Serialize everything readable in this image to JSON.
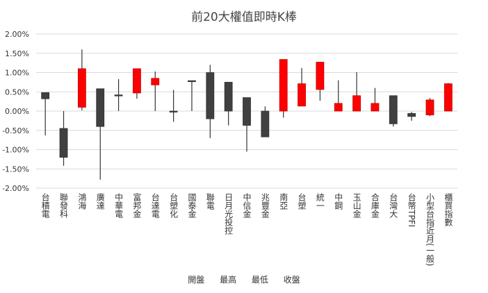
{
  "chart_data": {
    "type": "candlestick",
    "title": "前20大權值即時K棒",
    "ylim": [
      -2.0,
      2.0
    ],
    "yticks": [
      "2.00%",
      "1.50%",
      "1.00%",
      "0.50%",
      "0.00%",
      "-0.50%",
      "-1.00%",
      "-1.50%",
      "-2.00%"
    ],
    "grid": true,
    "legend_position": "bottom",
    "legend": [
      "開盤",
      "最高",
      "最低",
      "收盤"
    ],
    "colors": {
      "up": "#ff0000",
      "down": "#404040",
      "grid": "#d9d9d9",
      "wick": "#333333"
    },
    "categories": [
      "台積電",
      "聯發科",
      "鴻海",
      "廣達",
      "中華電",
      "富邦金",
      "台達電",
      "台塑化",
      "國泰金",
      "聯電",
      "日月光投控",
      "中信金",
      "兆豐金",
      "南亞",
      "台塑",
      "統一",
      "中鋼",
      "玉山金",
      "合庫金",
      "台灣大",
      "台幣TPFI",
      "小型台指近月(一般)",
      "櫃買指數"
    ],
    "open": [
      0.48,
      -0.45,
      0.1,
      0.58,
      0.42,
      0.47,
      0.68,
      0.0,
      0.79,
      1.0,
      0.75,
      0.35,
      0.0,
      0.0,
      0.13,
      0.56,
      0.0,
      0.0,
      0.0,
      0.4,
      -0.06,
      -0.1,
      0.0
    ],
    "high": [
      0.48,
      0.0,
      1.6,
      0.58,
      0.83,
      1.1,
      1.03,
      0.55,
      0.79,
      1.2,
      0.75,
      0.35,
      0.12,
      1.34,
      1.12,
      1.27,
      0.8,
      1.01,
      0.6,
      0.4,
      -0.02,
      0.34,
      0.73
    ],
    "low": [
      -0.63,
      -1.42,
      0.02,
      -1.78,
      0.0,
      0.32,
      0.0,
      -0.28,
      0.0,
      -0.7,
      -0.37,
      -1.05,
      -0.67,
      -0.17,
      0.13,
      0.27,
      0.0,
      0.0,
      0.0,
      -0.4,
      -0.25,
      -0.13,
      0.0
    ],
    "close": [
      0.32,
      -1.2,
      1.1,
      -0.4,
      0.4,
      1.1,
      0.85,
      -0.01,
      0.78,
      -0.2,
      0.0,
      -0.37,
      -0.67,
      1.34,
      0.71,
      1.27,
      0.2,
      0.4,
      0.2,
      -0.33,
      -0.14,
      0.29,
      0.71
    ]
  }
}
